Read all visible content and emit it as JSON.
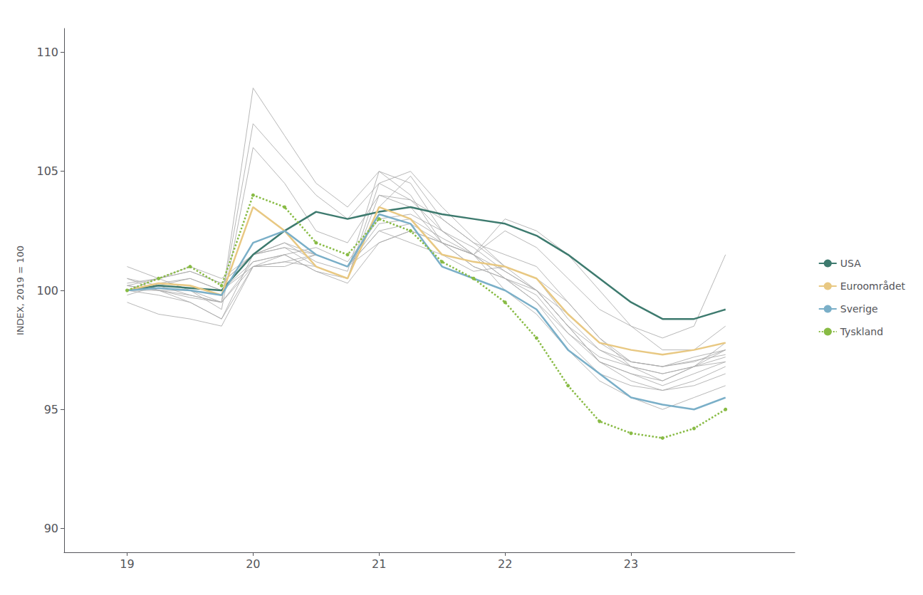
{
  "chart_data": {
    "type": "line",
    "y_label": "INDEX, 2019 = 100",
    "xlim": [
      18.5,
      24.3
    ],
    "xticks": [
      19,
      20,
      21,
      22,
      23
    ],
    "ylim": [
      89,
      111
    ],
    "yticks": [
      90,
      95,
      100,
      105,
      110
    ],
    "grid": false,
    "legend": "right",
    "series": [
      {
        "color": "#aaaaaa",
        "x": [
          19.0,
          19.25,
          19.5,
          19.75,
          20.0,
          20.25,
          20.5,
          20.75,
          21.0,
          21.25,
          21.5,
          21.75,
          22.0,
          22.25,
          22.5,
          22.75,
          23.0,
          23.25,
          23.5,
          23.75
        ],
        "values": [
          100.5,
          100.2,
          99.8,
          99.5,
          108.5,
          106.5,
          104.5,
          103.5,
          105.0,
          104.0,
          102.0,
          101.0,
          100.5,
          99.8,
          98.2,
          97.0,
          96.5,
          96.0,
          96.5,
          97.0
        ]
      },
      {
        "color": "#aaaaaa",
        "x": [
          19.0,
          19.25,
          19.5,
          19.75,
          20.0,
          20.25,
          20.5,
          20.75,
          21.0,
          21.25,
          21.5,
          21.75,
          22.0,
          22.25,
          22.5,
          22.75,
          23.0,
          23.25,
          23.5,
          23.75
        ],
        "values": [
          100.2,
          100.0,
          99.7,
          99.5,
          107.0,
          105.5,
          104.0,
          103.0,
          104.5,
          103.8,
          102.5,
          101.5,
          100.8,
          100.0,
          98.5,
          97.5,
          97.0,
          96.8,
          97.2,
          97.5
        ]
      },
      {
        "color": "#aaaaaa",
        "x": [
          19.0,
          19.25,
          19.5,
          19.75,
          20.0,
          20.25,
          20.5,
          20.75,
          21.0,
          21.25,
          21.5,
          21.75,
          22.0,
          22.25,
          22.5,
          22.75,
          23.0,
          23.25,
          23.5,
          23.75
        ],
        "values": [
          101.0,
          100.5,
          100.0,
          99.2,
          106.0,
          104.5,
          102.5,
          102.0,
          104.0,
          103.5,
          102.0,
          101.0,
          100.5,
          99.5,
          97.8,
          96.5,
          96.0,
          95.8,
          96.2,
          96.8
        ]
      },
      {
        "color": "#aaaaaa",
        "x": [
          19.0,
          19.25,
          19.5,
          19.75,
          20.0,
          20.25,
          20.5,
          20.75,
          21.0,
          21.25,
          21.5,
          21.75,
          22.0,
          22.25,
          22.5,
          22.75,
          23.0,
          23.25,
          23.5,
          23.75
        ],
        "values": [
          100.0,
          100.5,
          100.8,
          100.3,
          101.5,
          101.8,
          101.5,
          101.0,
          102.5,
          102.8,
          102.0,
          101.5,
          100.5,
          99.5,
          98.2,
          97.2,
          96.8,
          96.5,
          96.8,
          97.2
        ]
      },
      {
        "color": "#aaaaaa",
        "x": [
          19.0,
          19.25,
          19.5,
          19.75,
          20.0,
          20.25,
          20.5,
          20.75,
          21.0,
          21.25,
          21.5,
          21.75,
          22.0,
          22.25,
          22.5,
          22.75,
          23.0,
          23.25,
          23.5,
          23.75
        ],
        "values": [
          100.2,
          100.0,
          99.8,
          99.5,
          101.2,
          101.5,
          101.8,
          101.2,
          103.0,
          103.2,
          102.5,
          101.8,
          100.8,
          100.0,
          98.5,
          97.0,
          96.2,
          95.8,
          96.0,
          96.5
        ]
      },
      {
        "color": "#aaaaaa",
        "x": [
          19.0,
          19.25,
          19.5,
          19.75,
          20.0,
          20.25,
          20.5,
          20.75,
          21.0,
          21.25,
          21.5,
          21.75,
          22.0,
          22.25,
          22.5,
          22.75,
          23.0,
          23.25,
          23.5,
          23.75
        ],
        "values": [
          99.8,
          100.2,
          100.5,
          100.0,
          101.0,
          101.2,
          101.5,
          101.0,
          102.8,
          103.0,
          102.2,
          101.5,
          100.5,
          100.0,
          99.0,
          97.8,
          97.0,
          96.8,
          97.0,
          97.5
        ]
      },
      {
        "color": "#aaaaaa",
        "x": [
          19.0,
          19.25,
          19.5,
          19.75,
          20.0,
          20.25,
          20.5,
          20.75,
          21.0,
          21.25,
          21.5,
          21.75,
          22.0,
          22.25,
          22.5,
          22.75,
          23.0,
          23.25,
          23.5,
          23.75
        ],
        "values": [
          100.0,
          99.8,
          99.5,
          98.8,
          101.0,
          101.5,
          100.8,
          100.5,
          103.5,
          104.8,
          103.0,
          102.0,
          101.0,
          100.5,
          98.8,
          97.5,
          96.8,
          96.5,
          96.8,
          97.0
        ]
      },
      {
        "color": "#aaaaaa",
        "x": [
          19.0,
          19.25,
          19.5,
          19.75,
          20.0,
          20.25,
          20.5,
          20.75,
          21.0,
          21.25,
          21.5,
          21.75,
          22.0,
          22.25,
          22.5,
          22.75,
          23.0,
          23.25,
          23.5,
          23.75
        ],
        "values": [
          100.3,
          100.5,
          101.0,
          100.5,
          101.5,
          102.0,
          101.2,
          100.8,
          105.0,
          104.5,
          102.5,
          101.5,
          100.0,
          99.0,
          97.5,
          96.2,
          95.5,
          95.0,
          95.5,
          96.0
        ]
      },
      {
        "color": "#aaaaaa",
        "x": [
          19.0,
          19.25,
          19.5,
          19.75,
          20.0,
          20.25,
          20.5,
          20.75,
          21.0,
          21.25,
          21.5,
          21.75,
          22.0,
          22.25,
          22.5,
          22.75,
          23.0,
          23.25,
          23.5,
          23.75
        ],
        "values": [
          99.5,
          99.0,
          98.8,
          98.5,
          101.0,
          101.2,
          101.0,
          100.5,
          104.5,
          105.0,
          103.5,
          102.2,
          101.0,
          100.0,
          98.5,
          97.0,
          96.5,
          96.2,
          96.8,
          97.5
        ]
      },
      {
        "color": "#aaaaaa",
        "x": [
          19.0,
          19.25,
          19.5,
          19.75,
          20.0,
          20.25,
          20.5,
          20.75,
          21.0,
          21.25,
          21.5,
          21.75,
          22.0,
          22.25,
          22.5,
          22.75,
          23.0,
          23.25,
          23.5,
          23.75
        ],
        "values": [
          100.0,
          100.3,
          100.5,
          100.0,
          101.2,
          101.5,
          100.8,
          100.3,
          102.0,
          102.5,
          102.0,
          101.5,
          102.5,
          101.8,
          100.5,
          99.2,
          98.5,
          98.0,
          98.5,
          101.5
        ]
      },
      {
        "color": "#aaaaaa",
        "x": [
          19.0,
          19.25,
          19.5,
          19.75,
          20.0,
          20.25,
          20.5,
          20.75,
          21.0,
          21.25,
          21.5,
          21.75,
          22.0,
          22.25,
          22.5,
          22.75,
          23.0,
          23.25,
          23.5,
          23.75
        ],
        "values": [
          100.5,
          100.0,
          99.5,
          98.8,
          101.5,
          102.0,
          101.5,
          101.0,
          102.5,
          102.0,
          101.5,
          100.8,
          101.0,
          100.5,
          99.5,
          98.0,
          96.8,
          96.2,
          96.8,
          97.8
        ]
      },
      {
        "color": "#aaaaaa",
        "x": [
          19.0,
          19.25,
          19.5,
          19.75,
          20.0,
          20.25,
          20.5,
          20.75,
          21.0,
          21.25,
          21.5,
          21.75,
          22.0,
          22.25,
          22.5,
          22.75,
          23.0,
          23.25,
          23.5,
          23.75
        ],
        "values": [
          100.0,
          100.0,
          100.0,
          99.5,
          101.0,
          101.0,
          101.5,
          101.0,
          102.0,
          102.5,
          102.0,
          101.5,
          103.0,
          102.5,
          101.5,
          100.0,
          98.5,
          97.5,
          97.5,
          98.5
        ]
      },
      {
        "color": "#aaaaaa",
        "x": [
          19.0,
          19.25,
          19.5,
          19.75,
          20.0,
          20.25,
          20.5,
          20.75,
          21.0,
          21.25,
          21.5,
          21.75,
          22.0,
          22.25,
          22.5,
          22.75,
          23.0,
          23.25,
          23.75
        ],
        "values": [
          100.2,
          100.5,
          100.8,
          100.3,
          101.5,
          101.8,
          101.0,
          100.5,
          104.0,
          103.8,
          103.0,
          102.0,
          101.5,
          101.0,
          99.5,
          98.0,
          97.0,
          96.8,
          97.3
        ]
      },
      {
        "name": "USA",
        "color": "#3d7a6e",
        "x": [
          19.0,
          19.25,
          19.5,
          19.75,
          20.0,
          20.25,
          20.5,
          20.75,
          21.0,
          21.25,
          21.5,
          21.75,
          22.0,
          22.25,
          22.5,
          22.75,
          23.0,
          23.25,
          23.5,
          23.75
        ],
        "values": [
          100.0,
          100.2,
          100.1,
          100.0,
          101.5,
          102.5,
          103.3,
          103.0,
          103.3,
          103.5,
          103.2,
          103.0,
          102.8,
          102.3,
          101.5,
          100.5,
          99.5,
          98.8,
          98.8,
          99.2
        ]
      },
      {
        "name": "Euroområdet",
        "color": "#e8c882",
        "x": [
          19.0,
          19.25,
          19.5,
          19.75,
          20.0,
          20.25,
          20.5,
          20.75,
          21.0,
          21.25,
          21.5,
          21.75,
          22.0,
          22.25,
          22.5,
          22.75,
          23.0,
          23.25,
          23.5,
          23.75
        ],
        "values": [
          100.0,
          100.3,
          100.2,
          99.8,
          103.5,
          102.5,
          101.0,
          100.5,
          103.5,
          103.0,
          101.5,
          101.2,
          101.0,
          100.5,
          99.0,
          97.8,
          97.5,
          97.3,
          97.5,
          97.8
        ]
      },
      {
        "name": "Sverige",
        "color": "#7aafc8",
        "x": [
          19.0,
          19.25,
          19.5,
          19.75,
          20.0,
          20.25,
          20.5,
          20.75,
          21.0,
          21.25,
          21.5,
          21.75,
          22.0,
          22.25,
          22.5,
          22.75,
          23.0,
          23.25,
          23.5,
          23.75
        ],
        "values": [
          100.0,
          100.1,
          100.0,
          99.8,
          102.0,
          102.5,
          101.5,
          101.0,
          103.2,
          102.8,
          101.0,
          100.5,
          100.0,
          99.2,
          97.5,
          96.5,
          95.5,
          95.2,
          95.0,
          95.5
        ]
      },
      {
        "name": "Tyskland",
        "color": "#88bb44",
        "line_style": "dotted",
        "marker": "circle",
        "x": [
          19.0,
          19.25,
          19.5,
          19.75,
          20.0,
          20.25,
          20.5,
          20.75,
          21.0,
          21.25,
          21.5,
          21.75,
          22.0,
          22.25,
          22.5,
          22.75,
          23.0,
          23.25,
          23.5,
          23.75
        ],
        "values": [
          100.0,
          100.5,
          101.0,
          100.2,
          104.0,
          103.5,
          102.0,
          101.5,
          103.0,
          102.5,
          101.2,
          100.5,
          99.5,
          98.0,
          96.0,
          94.5,
          94.0,
          93.8,
          94.2,
          95.0
        ]
      }
    ]
  }
}
